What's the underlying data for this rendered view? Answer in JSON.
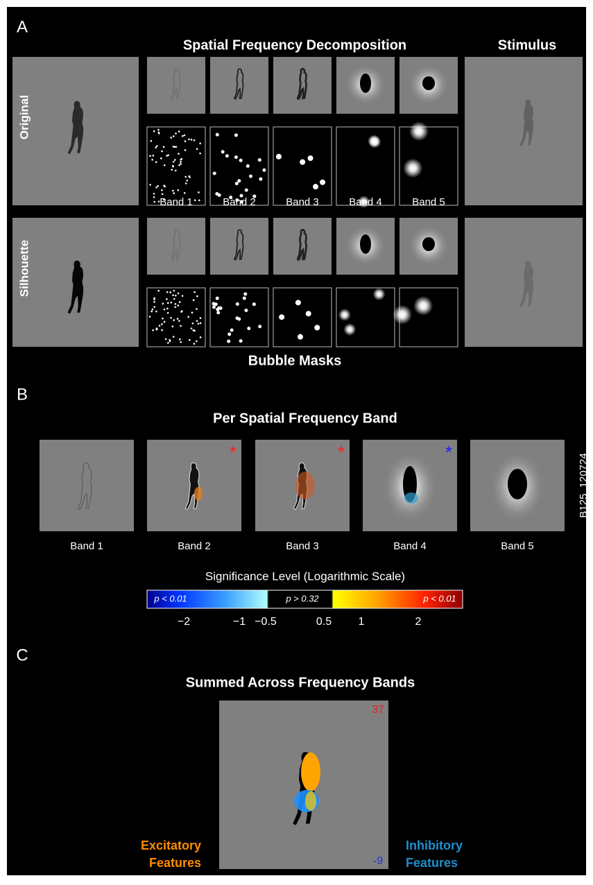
{
  "panel_a": {
    "label": "A",
    "title": "Spatial Frequency Decomposition",
    "stimulus_title": "Stimulus",
    "rows": [
      "Original",
      "Silhouette"
    ],
    "bands": [
      "Band 1",
      "Band 2",
      "Band 3",
      "Band 4",
      "Band 5"
    ],
    "footer": "Bubble Masks"
  },
  "panel_b": {
    "label": "B",
    "title": "Per Spatial Frequency Band",
    "bands": [
      "Band 1",
      "Band 2",
      "Band 3",
      "Band 4",
      "Band 5"
    ],
    "markers": [
      "*",
      "*",
      "*"
    ],
    "subject_id": "B125_120724",
    "colorbar": {
      "title": "Significance Level (Logarithmic Scale)",
      "labels": [
        "p < 0.01",
        "p > 0.32",
        "p < 0.01"
      ],
      "ticks": [
        "−2",
        "−1",
        "−0.5",
        "0.5",
        "1",
        "2"
      ]
    }
  },
  "panel_c": {
    "label": "C",
    "title": "Summed Across Frequency Bands",
    "max_label": "37",
    "min_label": "-9",
    "excitatory": [
      "Excitatory",
      "Features"
    ],
    "inhibitory": [
      "Inhibitory",
      "Features"
    ]
  }
}
